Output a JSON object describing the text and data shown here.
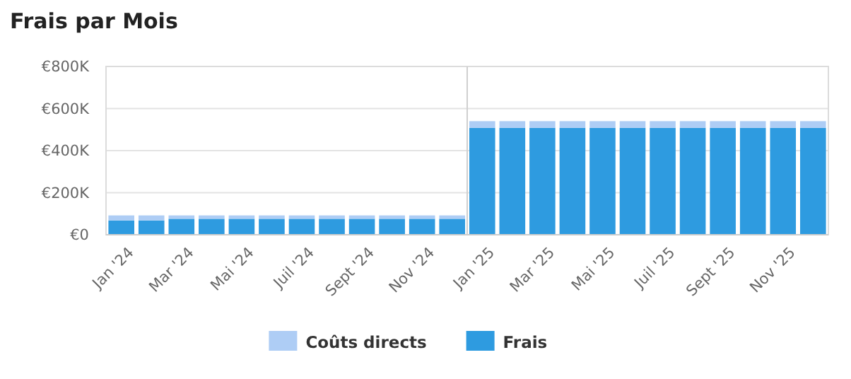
{
  "chart_data": {
    "type": "bar",
    "title": "Frais par Mois",
    "stacked": true,
    "categories": [
      "Jan '24",
      null,
      "Mar '24",
      null,
      "Mai '24",
      null,
      "Juil '24",
      null,
      "Sept '24",
      null,
      "Nov '24",
      null,
      "Jan '25",
      null,
      "Mar '25",
      null,
      "Mai '25",
      null,
      "Juil '25",
      null,
      "Sept '25",
      null,
      "Nov '25",
      null
    ],
    "series": [
      {
        "name": "Frais",
        "color": "#2e9be0",
        "values": [
          68000,
          68000,
          76000,
          76000,
          76000,
          76000,
          76000,
          76000,
          76000,
          76000,
          76000,
          76000,
          508000,
          508000,
          508000,
          508000,
          508000,
          508000,
          508000,
          508000,
          508000,
          508000,
          508000,
          508000
        ]
      },
      {
        "name": "Coûts directs",
        "color": "#aecdf5",
        "values": [
          24000,
          24000,
          16000,
          16000,
          16000,
          16000,
          16000,
          16000,
          16000,
          16000,
          16000,
          16000,
          32000,
          32000,
          32000,
          32000,
          32000,
          32000,
          32000,
          32000,
          32000,
          32000,
          32000,
          32000
        ]
      }
    ],
    "ylim": [
      0,
      800000
    ],
    "yticks": [
      {
        "value": 0,
        "label": "€0"
      },
      {
        "value": 200000,
        "label": "€200K"
      },
      {
        "value": 400000,
        "label": "€400K"
      },
      {
        "value": 600000,
        "label": "€600K"
      },
      {
        "value": 800000,
        "label": "€800K"
      }
    ],
    "grid": "y",
    "legend": "bottom"
  }
}
